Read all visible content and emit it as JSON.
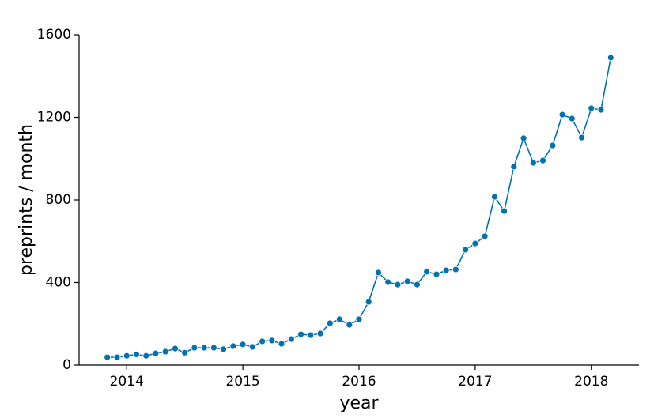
{
  "chart_data": {
    "type": "line",
    "x_label": "year",
    "y_label": "preprints / month",
    "x": [
      2013.833,
      2013.917,
      2014,
      2014.083,
      2014.167,
      2014.25,
      2014.333,
      2014.417,
      2014.5,
      2014.583,
      2014.667,
      2014.75,
      2014.833,
      2014.917,
      2015,
      2015.083,
      2015.167,
      2015.25,
      2015.333,
      2015.417,
      2015.5,
      2015.583,
      2015.667,
      2015.75,
      2015.833,
      2015.917,
      2016,
      2016.083,
      2016.167,
      2016.25,
      2016.333,
      2016.417,
      2016.5,
      2016.583,
      2016.667,
      2016.75,
      2016.833,
      2016.917,
      2017,
      2017.083,
      2017.167,
      2017.25,
      2017.333,
      2017.417,
      2017.5,
      2017.583,
      2017.667,
      2017.75,
      2017.833,
      2017.917,
      2018,
      2018.083,
      2018.167
    ],
    "series": [
      {
        "name": "preprints",
        "color": "#0072b2",
        "values": [
          38,
          38,
          45,
          52,
          45,
          57,
          65,
          80,
          60,
          84,
          84,
          84,
          77,
          92,
          100,
          88,
          115,
          119,
          103,
          126,
          149,
          145,
          153,
          203,
          222,
          195,
          222,
          306,
          448,
          402,
          390,
          406,
          390,
          452,
          440,
          459,
          463,
          559,
          589,
          624,
          815,
          746,
          961,
          1099,
          980,
          991,
          1064,
          1213,
          1194,
          1102,
          1244,
          1236,
          1489
        ]
      }
    ],
    "xlim": [
      2013.59,
      2018.41
    ],
    "xticks": [
      2014,
      2015,
      2016,
      2017,
      2018
    ],
    "ylim": [
      0,
      1600
    ],
    "yticks": [
      0,
      400,
      800,
      1200,
      1600
    ],
    "grid": false
  }
}
